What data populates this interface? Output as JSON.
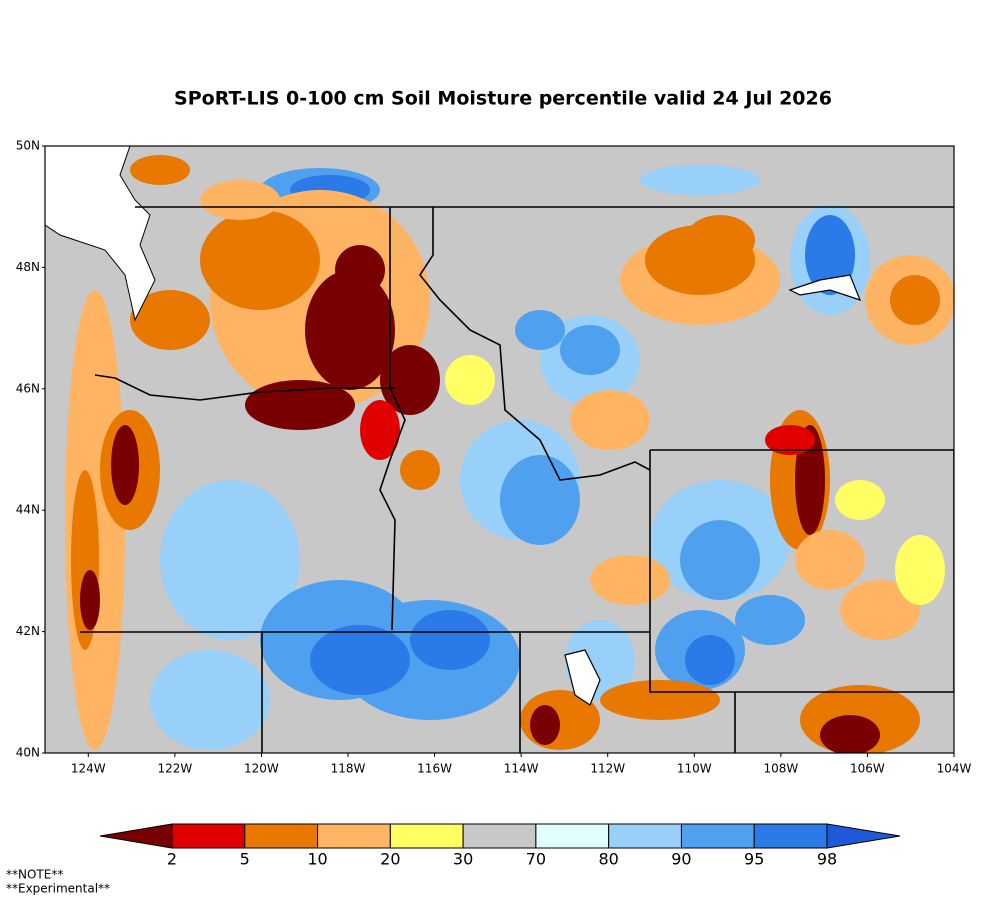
{
  "title": "SPoRT-LIS 0-100 cm Soil Moisture percentile valid 24 Jul 2026",
  "map": {
    "lat_labels": [
      "50N",
      "48N",
      "46N",
      "44N",
      "42N",
      "40N"
    ],
    "lon_labels": [
      "124W",
      "122W",
      "120W",
      "118W",
      "116W",
      "114W",
      "112W",
      "110W",
      "108W",
      "106W",
      "104W"
    ]
  },
  "colorbar": {
    "bins": [
      2,
      5,
      10,
      20,
      30,
      70,
      80,
      90,
      95,
      98
    ],
    "colors": [
      "#780000",
      "#e00000",
      "#e87800",
      "#ffb464",
      "#ffff64",
      "#c8c8c8",
      "#e0ffff",
      "#98d0fa",
      "#50a0f0",
      "#2a7ae8",
      "#1e5ad8"
    ]
  },
  "notes": [
    "**NOTE**",
    "**Experimental**"
  ]
}
